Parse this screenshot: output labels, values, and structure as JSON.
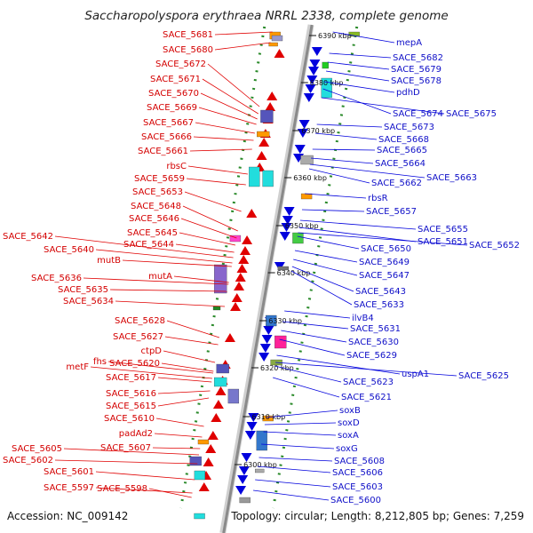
{
  "title": "Saccharopolyspora erythraea NRRL 2338, complete genome",
  "footer": {
    "accession": "Accession: NC_009142",
    "info": "Topology: circular; Length: 8,212,805 bp; Genes: 7,259"
  },
  "colors": {
    "forward": "#e00000",
    "reverse": "#0000dd",
    "backbone_light": "#cfcfcf",
    "backbone_dark": "#8a8a8a",
    "dots": "#2a8a2a"
  },
  "ticks": [
    "6390 kbp",
    "6380 kbp",
    "6370 kbp",
    "6360 kbp",
    "6350 kbp",
    "6340 kbp",
    "6330 kbp",
    "6320 kbp",
    "6310 kbp",
    "6300 kbp"
  ],
  "left_labels": [
    "SACE_5681",
    "SACE_5680",
    "SACE_5672",
    "SACE_5671",
    "SACE_5670",
    "SACE_5669",
    "SACE_5667",
    "SACE_5666",
    "SACE_5661",
    "rbsC",
    "SACE_5659",
    "SACE_5653",
    "SACE_5648",
    "SACE_5646",
    "SACE_5645",
    "SACE_5642",
    "SACE_5644",
    "SACE_5640",
    "mutB",
    "SACE_5636",
    "mutA",
    "SACE_5635",
    "SACE_5634",
    "SACE_5628",
    "SACE_5627",
    "ctpD",
    "fhs",
    "SACE_5620",
    "metF",
    "SACE_5617",
    "SACE_5616",
    "SACE_5615",
    "SACE_5610",
    "padAd2",
    "SACE_5607",
    "SACE_5605",
    "SACE_5602",
    "SACE_5601",
    "SACE_5597",
    "SACE_5598"
  ],
  "right_labels": [
    "mepA",
    "SACE_5682",
    "SACE_5679",
    "SACE_5678",
    "pdhD",
    "SACE_5674",
    "SACE_5675",
    "SACE_5673",
    "SACE_5668",
    "SACE_5665",
    "SACE_5664",
    "SACE_5663",
    "SACE_5662",
    "rbsR",
    "SACE_5657",
    "SACE_5655",
    "SACE_5651",
    "SACE_5652",
    "SACE_5650",
    "SACE_5649",
    "SACE_5647",
    "SACE_5643",
    "SACE_5633",
    "ilvB4",
    "SACE_5631",
    "SACE_5630",
    "SACE_5629",
    "uspA1",
    "SACE_5625",
    "SACE_5623",
    "SACE_5621",
    "soxB",
    "soxD",
    "soxA",
    "soxG",
    "SACE_5608",
    "SACE_5606",
    "SACE_5603",
    "SACE_5600"
  ]
}
